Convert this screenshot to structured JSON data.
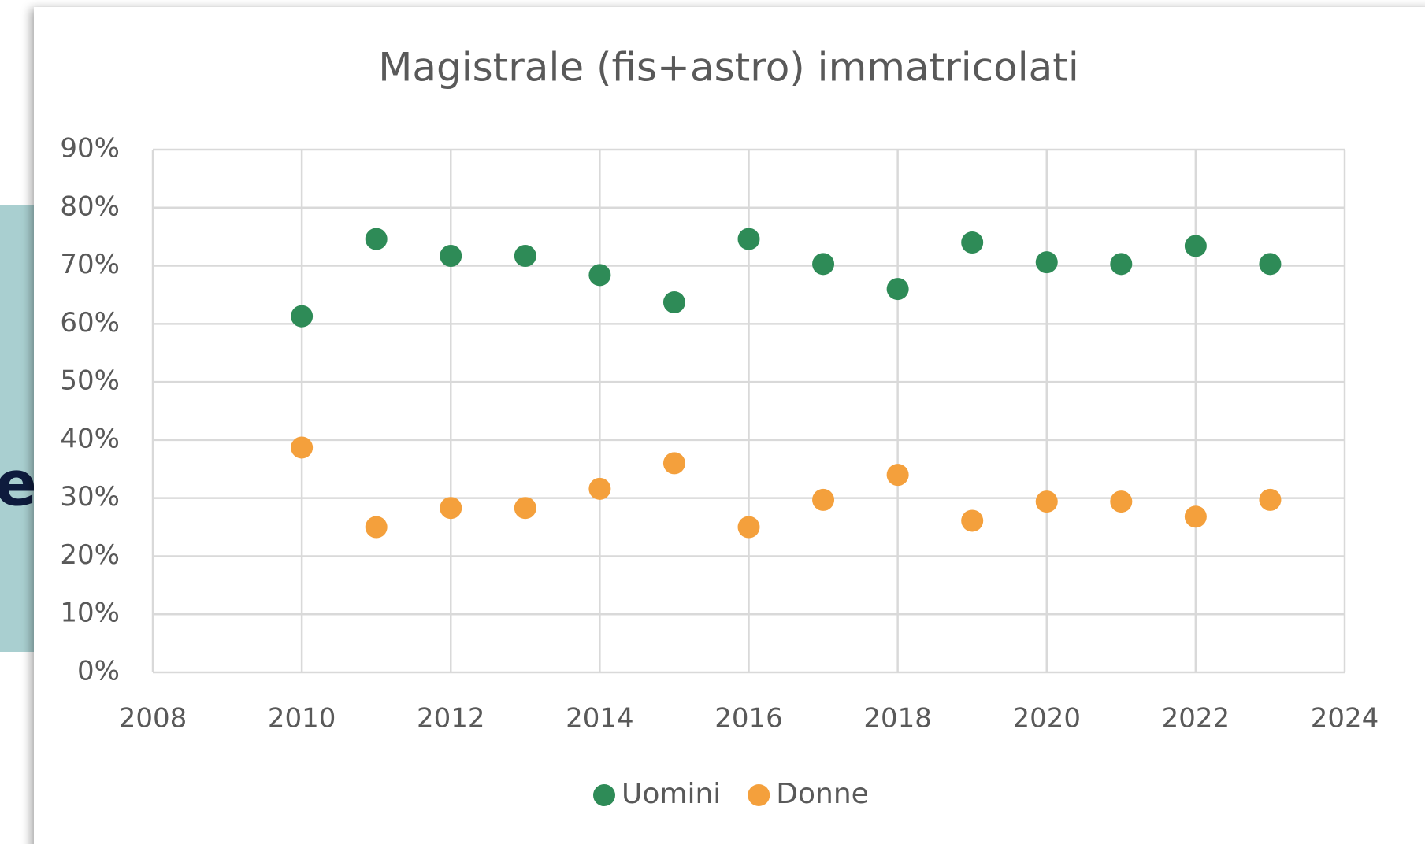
{
  "background_text": "e",
  "chart_data": {
    "type": "scatter",
    "title": "Magistrale (fis+astro) immatricolati",
    "x": [
      2010,
      2011,
      2012,
      2013,
      2014,
      2015,
      2016,
      2017,
      2018,
      2019,
      2020,
      2021,
      2022,
      2023
    ],
    "series": [
      {
        "name": "Uomini",
        "color": "#2e8b57",
        "values": [
          61.3,
          74.6,
          71.7,
          71.7,
          68.4,
          63.7,
          74.6,
          70.3,
          66.0,
          74.0,
          70.6,
          70.3,
          73.4,
          70.3
        ]
      },
      {
        "name": "Donne",
        "color": "#f4a03c",
        "values": [
          38.7,
          25.0,
          28.3,
          28.3,
          31.6,
          36.0,
          25.0,
          29.7,
          34.0,
          26.1,
          29.4,
          29.4,
          26.8,
          29.7
        ]
      }
    ],
    "xlim": [
      2008,
      2024
    ],
    "xticks": [
      2008,
      2010,
      2012,
      2014,
      2016,
      2018,
      2020,
      2022,
      2024
    ],
    "ylim": [
      0,
      90
    ],
    "yticks": [
      {
        "value": 0,
        "label": "0%"
      },
      {
        "value": 10,
        "label": "10%"
      },
      {
        "value": 20,
        "label": "20%"
      },
      {
        "value": 30,
        "label": "30%"
      },
      {
        "value": 40,
        "label": "40%"
      },
      {
        "value": 50,
        "label": "50%"
      },
      {
        "value": 60,
        "label": "60%"
      },
      {
        "value": 70,
        "label": "70%"
      },
      {
        "value": 80,
        "label": "80%"
      },
      {
        "value": 90,
        "label": "90%"
      }
    ],
    "grid": true,
    "legend": "bottom"
  }
}
